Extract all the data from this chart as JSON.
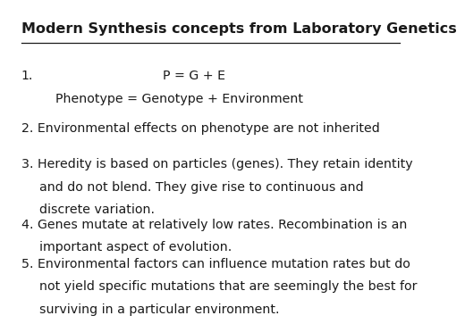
{
  "title": "Modern Synthesis concepts from Laboratory Genetics",
  "background_color": "#ffffff",
  "text_color": "#1a1a1a",
  "title_fontsize": 11.5,
  "body_fontsize": 10.2,
  "item1_num": "1.",
  "item1_line1": "P = G + E",
  "item1_line2": "Phenotype = Genotype + Environment",
  "item2": "2. Environmental effects on phenotype are not inherited",
  "item3_line1": "3. Heredity is based on particles (genes). They retain identity",
  "item3_line2": "and do not blend. They give rise to continuous and",
  "item3_line3": "discrete variation.",
  "item4_line1": "4. Genes mutate at relatively low rates. Recombination is an",
  "item4_line2": "important aspect of evolution.",
  "item5_line1": "5. Environmental factors can influence mutation rates but do",
  "item5_line2": "not yield specific mutations that are seemingly the best for",
  "item5_line3": "surviving in a particular environment."
}
